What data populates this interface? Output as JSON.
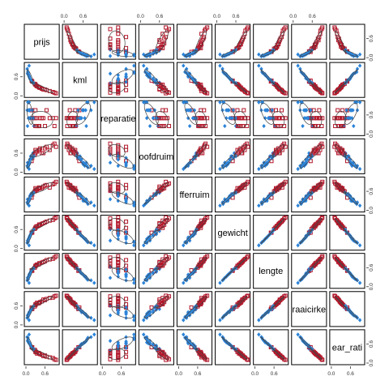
{
  "chart_data": {
    "type": "scatter",
    "title": "",
    "variables": [
      "prijs",
      "kml",
      "reparatie",
      "hoofdruimte",
      "achterruimte",
      "gewicht",
      "lengte",
      "draaicirkel",
      "gear_ratio"
    ],
    "diagonal_labels": [
      "prijs",
      "kml",
      "reparatie",
      "oofdruim",
      "fferruim",
      "gewicht",
      "lengte",
      "raaicirke",
      "ear_rati"
    ],
    "axis_range": [
      0,
      1
    ],
    "tick_labels": [
      "0.0",
      "0.6"
    ],
    "tick_values": [
      0.0,
      0.6
    ],
    "groups": [
      {
        "marker": "open-square",
        "color": "#b2182b"
      },
      {
        "marker": "filled-diamond",
        "color": "#2b83d8"
      }
    ],
    "ellipses": true,
    "grid": false,
    "legend": "none",
    "columns": {
      "prijs": [
        0.05,
        0.08,
        0.12,
        0.15,
        0.18,
        0.22,
        0.25,
        0.3,
        0.1,
        0.06,
        0.2,
        0.14,
        0.35,
        0.45,
        0.55,
        0.65,
        0.75,
        0.9,
        0.1,
        0.04,
        0.16,
        0.28,
        0.4,
        0.12,
        0.08,
        0.5,
        0.6,
        0.85,
        0.95,
        0.2,
        0.3,
        0.25,
        0.07,
        0.11,
        0.33,
        0.42
      ],
      "kml": [
        0.7,
        0.65,
        0.55,
        0.5,
        0.48,
        0.42,
        0.4,
        0.35,
        0.6,
        0.75,
        0.45,
        0.52,
        0.3,
        0.25,
        0.2,
        0.18,
        0.15,
        0.1,
        0.95,
        0.85,
        0.5,
        0.38,
        0.28,
        0.58,
        0.68,
        0.22,
        0.2,
        0.12,
        0.08,
        0.44,
        0.36,
        0.4,
        0.72,
        0.62,
        0.32,
        0.26
      ],
      "reparatie": [
        0.25,
        0.5,
        0.5,
        0.5,
        0.75,
        0.5,
        0.25,
        0.75,
        0.75,
        1.0,
        0.5,
        0.5,
        0.25,
        0.5,
        0.5,
        0.75,
        0.5,
        0.25,
        1.0,
        0.75,
        0.5,
        0.5,
        0.25,
        0.75,
        0.75,
        0.5,
        0.25,
        0.5,
        0.5,
        0.75,
        0.25,
        0.5,
        1.0,
        0.75,
        0.5,
        0.25
      ],
      "hoofdruimte": [
        0.3,
        0.2,
        0.4,
        0.5,
        0.35,
        0.6,
        0.55,
        0.7,
        0.25,
        0.15,
        0.45,
        0.4,
        0.65,
        0.75,
        0.6,
        0.8,
        0.7,
        0.9,
        0.1,
        0.2,
        0.5,
        0.55,
        0.7,
        0.3,
        0.25,
        0.6,
        0.75,
        0.85,
        0.8,
        0.45,
        0.6,
        0.5,
        0.2,
        0.3,
        0.65,
        0.7
      ],
      "achterruimte": [
        0.35,
        0.3,
        0.45,
        0.5,
        0.4,
        0.55,
        0.6,
        0.7,
        0.3,
        0.2,
        0.5,
        0.45,
        0.65,
        0.7,
        0.75,
        0.8,
        0.72,
        0.85,
        0.15,
        0.25,
        0.52,
        0.6,
        0.68,
        0.38,
        0.3,
        0.7,
        0.78,
        0.82,
        0.9,
        0.5,
        0.62,
        0.55,
        0.25,
        0.35,
        0.66,
        0.72
      ],
      "gewicht": [
        0.25,
        0.3,
        0.4,
        0.45,
        0.5,
        0.55,
        0.6,
        0.65,
        0.35,
        0.2,
        0.5,
        0.42,
        0.7,
        0.75,
        0.8,
        0.85,
        0.88,
        0.95,
        0.1,
        0.18,
        0.48,
        0.62,
        0.72,
        0.38,
        0.3,
        0.78,
        0.82,
        0.9,
        0.98,
        0.52,
        0.66,
        0.6,
        0.22,
        0.34,
        0.7,
        0.76
      ],
      "lengte": [
        0.28,
        0.32,
        0.42,
        0.47,
        0.52,
        0.56,
        0.62,
        0.66,
        0.38,
        0.22,
        0.5,
        0.44,
        0.7,
        0.74,
        0.78,
        0.84,
        0.86,
        0.92,
        0.12,
        0.2,
        0.5,
        0.6,
        0.7,
        0.4,
        0.32,
        0.76,
        0.8,
        0.88,
        0.96,
        0.54,
        0.64,
        0.58,
        0.24,
        0.36,
        0.68,
        0.74
      ],
      "draaicirkel": [
        0.3,
        0.35,
        0.4,
        0.5,
        0.55,
        0.5,
        0.6,
        0.65,
        0.4,
        0.25,
        0.5,
        0.45,
        0.7,
        0.72,
        0.8,
        0.82,
        0.85,
        0.9,
        0.15,
        0.22,
        0.48,
        0.58,
        0.68,
        0.42,
        0.34,
        0.74,
        0.78,
        0.86,
        0.92,
        0.55,
        0.62,
        0.6,
        0.28,
        0.38,
        0.66,
        0.7
      ],
      "gear_ratio": [
        0.7,
        0.65,
        0.6,
        0.55,
        0.5,
        0.45,
        0.4,
        0.35,
        0.62,
        0.8,
        0.5,
        0.58,
        0.3,
        0.28,
        0.22,
        0.2,
        0.18,
        0.12,
        0.9,
        0.82,
        0.52,
        0.42,
        0.32,
        0.6,
        0.68,
        0.26,
        0.24,
        0.16,
        0.1,
        0.48,
        0.38,
        0.44,
        0.75,
        0.64,
        0.34,
        0.3
      ]
    },
    "group_index": [
      1,
      1,
      1,
      1,
      0,
      1,
      1,
      0,
      1,
      1,
      0,
      1,
      0,
      0,
      0,
      0,
      0,
      0,
      1,
      1,
      1,
      0,
      0,
      1,
      1,
      0,
      0,
      0,
      0,
      1,
      0,
      1,
      1,
      1,
      0,
      0
    ]
  }
}
